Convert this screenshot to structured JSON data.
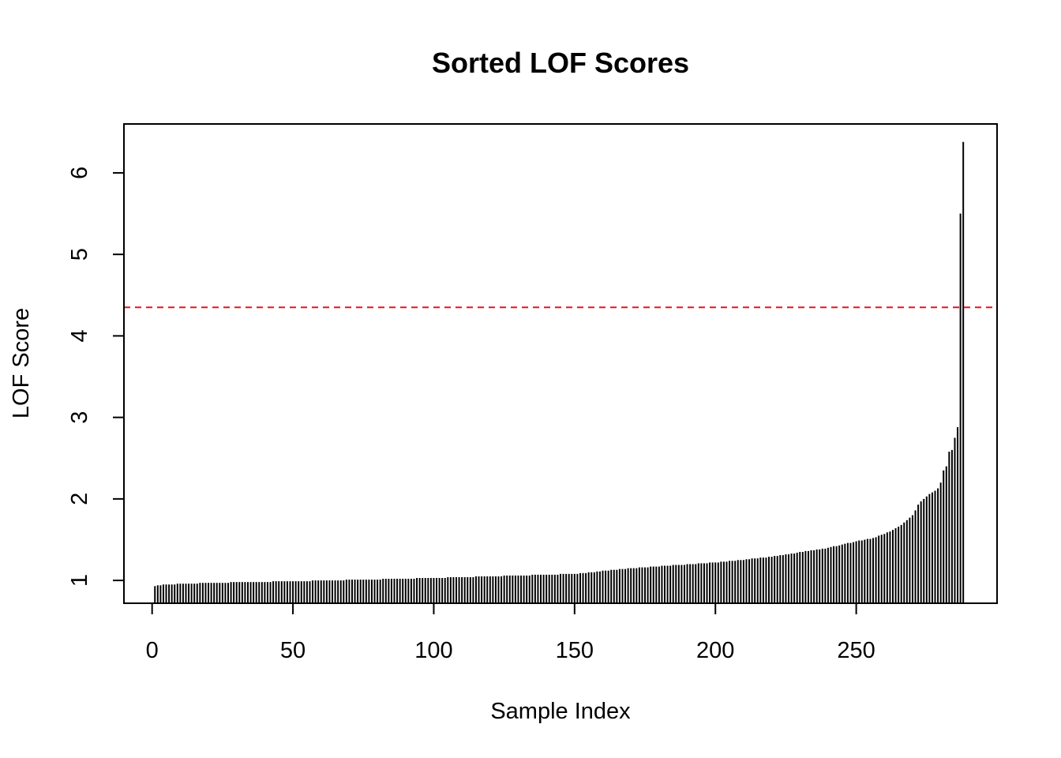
{
  "chart_data": {
    "type": "bar",
    "title": "Sorted LOF Scores",
    "xlabel": "Sample Index",
    "ylabel": "LOF Score",
    "xlim": [
      -10,
      300
    ],
    "ylim": [
      0.72,
      6.6
    ],
    "x_ticks": [
      0,
      50,
      100,
      150,
      200,
      250
    ],
    "y_ticks": [
      1,
      2,
      3,
      4,
      5,
      6
    ],
    "n_samples": 288,
    "threshold": 4.35,
    "threshold_color": "#e8141e",
    "bar_color": "#000000",
    "tail_values": [
      1.86,
      1.93,
      1.97,
      2.0,
      2.03,
      2.06,
      2.08,
      2.1,
      2.13,
      2.2,
      2.35,
      2.4,
      2.58,
      2.6,
      2.75,
      2.88,
      5.5,
      6.38
    ],
    "values": []
  }
}
